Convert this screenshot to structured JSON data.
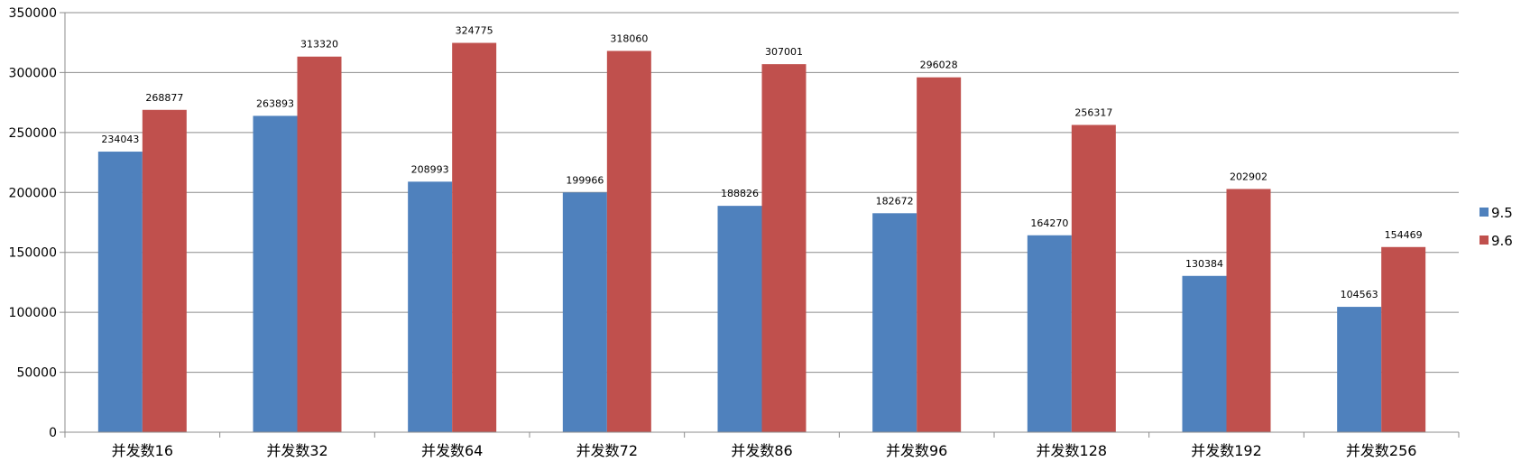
{
  "chart_data": {
    "type": "bar",
    "categories": [
      "并发数16",
      "并发数32",
      "并发数64",
      "并发数72",
      "并发数86",
      "并发数96",
      "并发数128",
      "并发数192",
      "并发数256"
    ],
    "series": [
      {
        "name": "9.5",
        "color": "#4f81bd",
        "values": [
          234043,
          263893,
          208993,
          199966,
          188826,
          182672,
          164270,
          130384,
          104563
        ]
      },
      {
        "name": "9.6",
        "color": "#c0504d",
        "values": [
          268877,
          313320,
          324775,
          318060,
          307001,
          296028,
          256317,
          202902,
          154469
        ]
      }
    ],
    "title": "",
    "xlabel": "",
    "ylabel": "",
    "ylim": [
      0,
      350000
    ],
    "yticks": [
      "0",
      "50000",
      "100000",
      "150000",
      "200000",
      "250000",
      "300000",
      "350000"
    ],
    "grid": true,
    "legend": "right",
    "data_labels": true
  }
}
